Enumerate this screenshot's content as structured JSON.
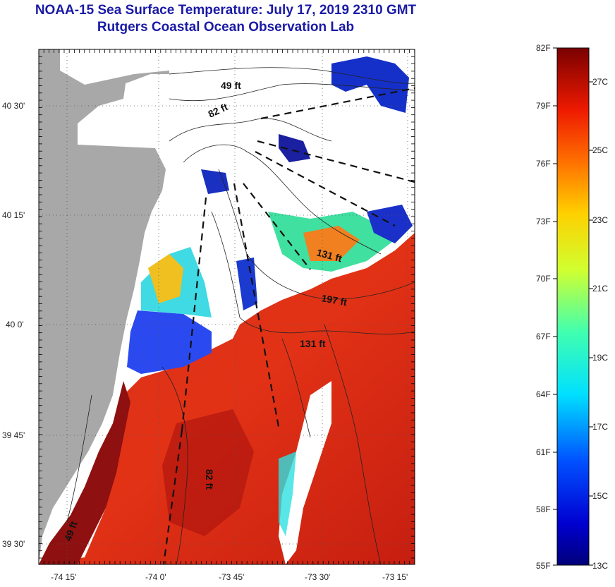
{
  "title": "NOAA-15 Sea Surface Temperature:  July 17, 2019 2310 GMT",
  "subtitle": "Rutgers Coastal Ocean Observation Lab",
  "map": {
    "lat_ticks": [
      "40 30'",
      "40 15'",
      "40 0'",
      "39 45'",
      "39 30'"
    ],
    "lon_ticks": [
      "-74 15'",
      "-74 0'",
      "-73 45'",
      "-73 30'",
      "-73 15'"
    ],
    "depth_labels": [
      "49 ft",
      "82 ft",
      "131 ft",
      "197 ft",
      "131 ft",
      "82 ft",
      "49 ft"
    ],
    "colors": {
      "land": "#a8a8a8",
      "cloud": "#ffffff",
      "warm": "#e02a10",
      "hot": "#8a0e0e",
      "cool": "#1a2fd0"
    }
  },
  "colorbar": {
    "f_labels": [
      "82F",
      "79F",
      "76F",
      "73F",
      "70F",
      "67F",
      "64F",
      "61F",
      "58F",
      "55F"
    ],
    "c_labels": [
      "27C",
      "25C",
      "23C",
      "21C",
      "19C",
      "17C",
      "15C",
      "13C"
    ]
  }
}
